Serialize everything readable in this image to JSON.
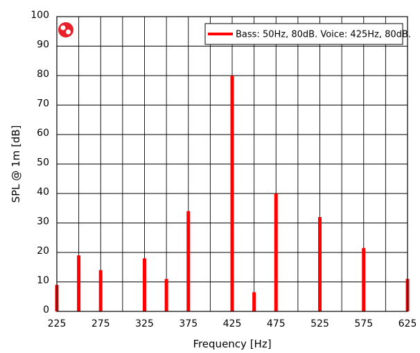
{
  "chart_data": {
    "type": "bar",
    "xlabel": "Frequency [Hz]",
    "ylabel": "SPL @ 1m [dB]",
    "xlim": [
      225,
      625
    ],
    "ylim": [
      0,
      100
    ],
    "x_ticks": [
      225,
      275,
      325,
      375,
      425,
      475,
      525,
      575,
      625
    ],
    "y_ticks": [
      0,
      10,
      20,
      30,
      40,
      50,
      60,
      70,
      80,
      90,
      100
    ],
    "grid": true,
    "legend_position": "top-right",
    "series": [
      {
        "name": "Bass: 50Hz, 80dB. Voice: 425Hz, 80dB.",
        "color": "#ff0000",
        "x": [
          225,
          250,
          275,
          325,
          350,
          375,
          425,
          450,
          475,
          525,
          575,
          625
        ],
        "values": [
          9,
          19,
          14,
          18,
          11,
          34,
          80,
          6.5,
          40,
          32,
          21.5,
          11
        ]
      }
    ]
  },
  "logo": {
    "icon": "red-circle-logo-icon",
    "color": "#e8202a"
  }
}
